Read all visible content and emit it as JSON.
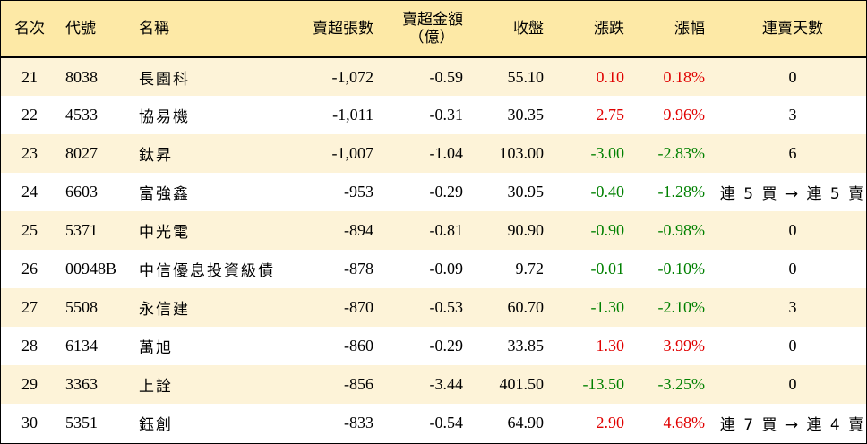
{
  "headers": {
    "rank": "名次",
    "code": "代號",
    "name": "名稱",
    "oversell_lots": "賣超張數",
    "oversell_amount_line1": "賣超金額",
    "oversell_amount_line2": "（億）",
    "close": "收盤",
    "change": "漲跌",
    "pct": "漲幅",
    "streak": "連賣天數"
  },
  "rows": [
    {
      "rank": "21",
      "code": "8038",
      "name": "長園科",
      "lots": "-1,072",
      "amount": "-0.59",
      "close": "55.10",
      "change": "0.10",
      "pct": "0.18%",
      "streak": "0",
      "dir": "up"
    },
    {
      "rank": "22",
      "code": "4533",
      "name": "協易機",
      "lots": "-1,011",
      "amount": "-0.31",
      "close": "30.35",
      "change": "2.75",
      "pct": "9.96%",
      "streak": "3",
      "dir": "up"
    },
    {
      "rank": "23",
      "code": "8027",
      "name": "鈦昇",
      "lots": "-1,007",
      "amount": "-1.04",
      "close": "103.00",
      "change": "-3.00",
      "pct": "-2.83%",
      "streak": "6",
      "dir": "down"
    },
    {
      "rank": "24",
      "code": "6603",
      "name": "富強鑫",
      "lots": "-953",
      "amount": "-0.29",
      "close": "30.95",
      "change": "-0.40",
      "pct": "-1.28%",
      "streak": "連 5 買 → 連 5 賣",
      "dir": "down"
    },
    {
      "rank": "25",
      "code": "5371",
      "name": "中光電",
      "lots": "-894",
      "amount": "-0.81",
      "close": "90.90",
      "change": "-0.90",
      "pct": "-0.98%",
      "streak": "0",
      "dir": "down"
    },
    {
      "rank": "26",
      "code": "00948B",
      "name": "中信優息投資級債",
      "lots": "-878",
      "amount": "-0.09",
      "close": "9.72",
      "change": "-0.01",
      "pct": "-0.10%",
      "streak": "0",
      "dir": "down"
    },
    {
      "rank": "27",
      "code": "5508",
      "name": "永信建",
      "lots": "-870",
      "amount": "-0.53",
      "close": "60.70",
      "change": "-1.30",
      "pct": "-2.10%",
      "streak": "3",
      "dir": "down"
    },
    {
      "rank": "28",
      "code": "6134",
      "name": "萬旭",
      "lots": "-860",
      "amount": "-0.29",
      "close": "33.85",
      "change": "1.30",
      "pct": "3.99%",
      "streak": "0",
      "dir": "up"
    },
    {
      "rank": "29",
      "code": "3363",
      "name": "上詮",
      "lots": "-856",
      "amount": "-3.44",
      "close": "401.50",
      "change": "-13.50",
      "pct": "-3.25%",
      "streak": "0",
      "dir": "down"
    },
    {
      "rank": "30",
      "code": "5351",
      "name": "鈺創",
      "lots": "-833",
      "amount": "-0.54",
      "close": "64.90",
      "change": "2.90",
      "pct": "4.68%",
      "streak": "連 7 買 → 連 4 賣",
      "dir": "up"
    }
  ],
  "colors": {
    "up": "#e00000",
    "down": "#008000",
    "header_bg": "#fde9a6",
    "odd_row_bg": "#fdf3d8"
  }
}
